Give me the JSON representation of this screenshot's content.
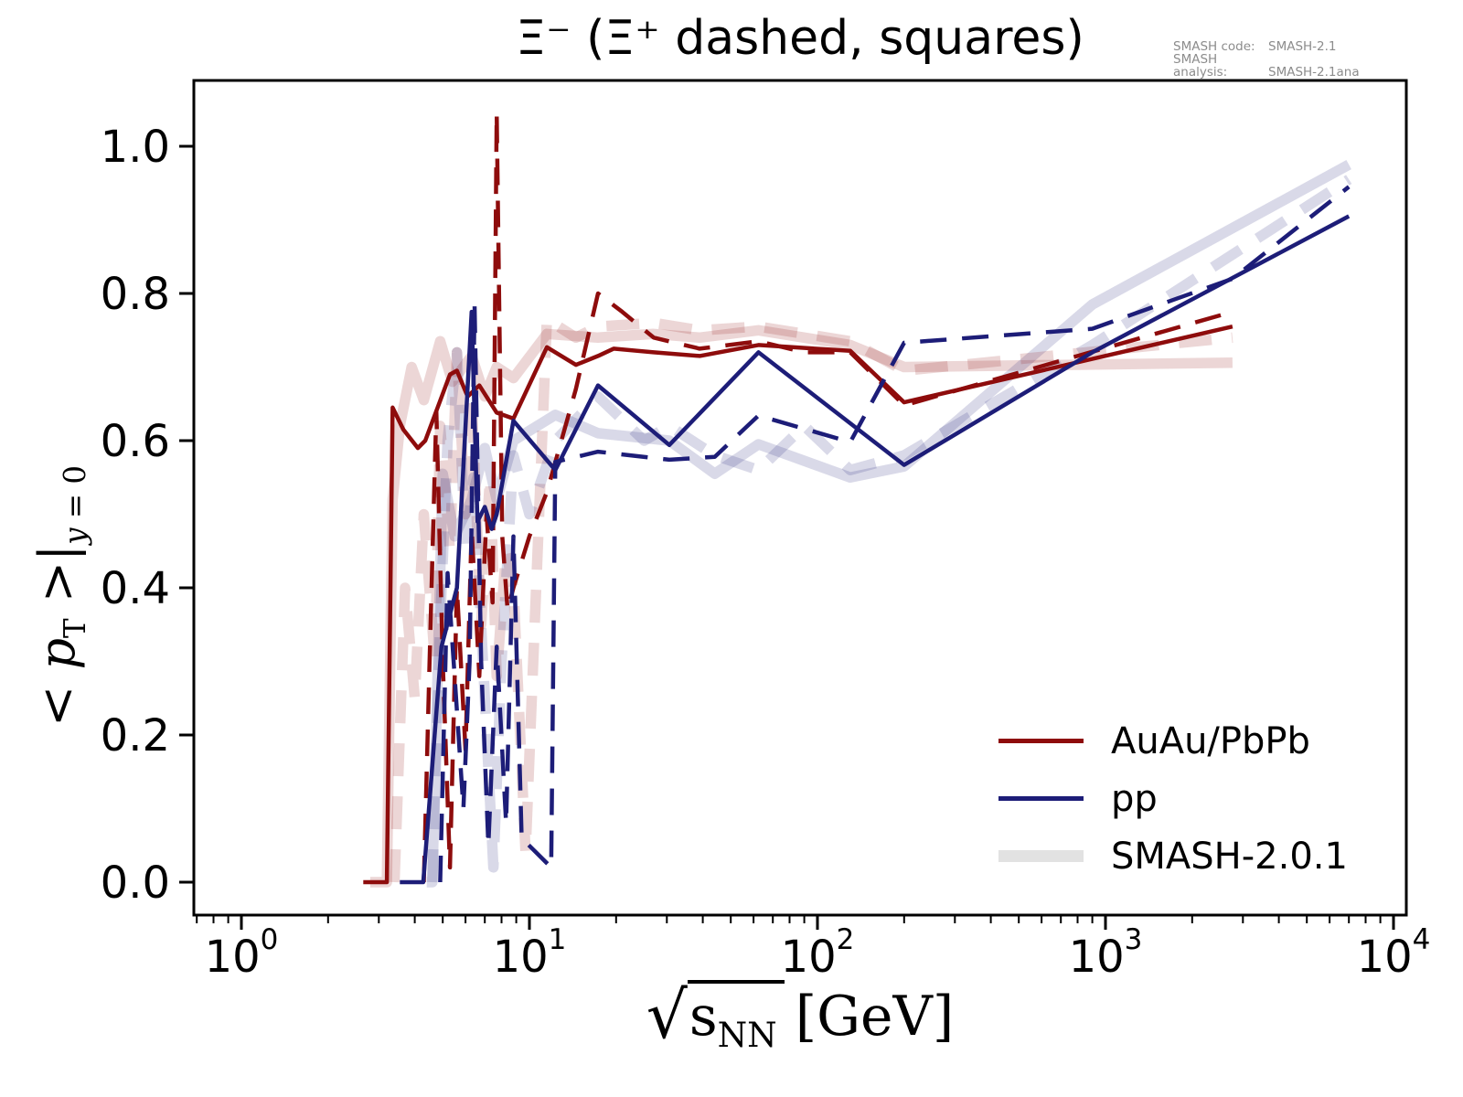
{
  "title": "Ξ⁻ (Ξ⁺ dashed, squares)",
  "watermark": {
    "line1_label": "SMASH code:",
    "line1_value": "SMASH-2.1",
    "line2_label": "SMASH analysis:",
    "line2_value": "SMASH-2.1ana"
  },
  "legend": {
    "items": [
      {
        "label": "AuAu/PbPb",
        "color": "#8e0c0c",
        "dash": "solid",
        "thickness": 5
      },
      {
        "label": "pp",
        "color": "#1d1d78",
        "dash": "solid",
        "thickness": 5
      },
      {
        "label": "SMASH-2.0.1",
        "color": "#e2e2e2",
        "dash": "solid",
        "thickness": 13
      }
    ]
  },
  "axes": {
    "xscale": "log",
    "xlabel": {
      "sqrt": "√",
      "radicand": "s",
      "radicand_sub": "NN",
      "unit": "[GeV]"
    },
    "ylabel": {
      "pre": "< ",
      "p": "p",
      "sub1": "T",
      "mid": " >|",
      "sub2_var": "y",
      "sub2_rest": " = 0"
    },
    "xticks": [
      {
        "base": "10",
        "exp": "0",
        "value": 1
      },
      {
        "base": "10",
        "exp": "1",
        "value": 10
      },
      {
        "base": "10",
        "exp": "2",
        "value": 100
      },
      {
        "base": "10",
        "exp": "3",
        "value": 1000
      },
      {
        "base": "10",
        "exp": "4",
        "value": 10000
      }
    ],
    "yticks": [
      {
        "label": "0.0",
        "value": 0.0
      },
      {
        "label": "0.2",
        "value": 0.2
      },
      {
        "label": "0.4",
        "value": 0.4
      },
      {
        "label": "0.6",
        "value": 0.6
      },
      {
        "label": "0.8",
        "value": 0.8
      },
      {
        "label": "1.0",
        "value": 1.0
      }
    ]
  },
  "chart_data": {
    "type": "line",
    "title": "Xi- (Xi+ dashed, squares)",
    "xlabel": "sqrt(s_NN) [GeV]",
    "ylabel": "<pT>|_{y=0}",
    "xscale": "log",
    "xlim": [
      0.68,
      11000
    ],
    "ylim": [
      -0.045,
      1.09
    ],
    "grid": false,
    "legend_position": "lower right",
    "series": [
      {
        "id": "auau-pbpb-smash201-solid",
        "name": "AuAu/PbPb SMASH-2.0.1 (Xi-)",
        "color": "#8e0c0c",
        "opacity": 0.17,
        "width": 11.5,
        "dash": null,
        "x": [
          2.8,
          3.2,
          3.35,
          3.55,
          3.9,
          4.3,
          4.9,
          5.4,
          6.3,
          7.0,
          7.7,
          8.8,
          11.5,
          17.3,
          27,
          39,
          62.4,
          130,
          200,
          2760
        ],
        "y": [
          0.0,
          0.0,
          0.52,
          0.62,
          0.7,
          0.655,
          0.735,
          0.68,
          0.715,
          0.66,
          0.7,
          0.685,
          0.745,
          0.74,
          0.745,
          0.74,
          0.75,
          0.73,
          0.7,
          0.706
        ]
      },
      {
        "id": "pp-smash201-solid",
        "name": "pp SMASH-2.0.1 (Xi-)",
        "color": "#1d1d78",
        "opacity": 0.17,
        "width": 11.5,
        "dash": null,
        "x": [
          4.4,
          4.6,
          5.0,
          5.5,
          6.3,
          7.0,
          7.7,
          8.8,
          12.3,
          17.3,
          30.6,
          44,
          62.4,
          130,
          200,
          900,
          7000
        ],
        "y": [
          0.0,
          0.0,
          0.555,
          0.47,
          0.52,
          0.59,
          0.52,
          0.6,
          0.635,
          0.61,
          0.6,
          0.555,
          0.595,
          0.55,
          0.565,
          0.785,
          0.975
        ]
      },
      {
        "id": "auau-pbpb-smash201-dashed-xibar",
        "name": "AuAu/PbPb SMASH-2.0.1 (Xi+ dashed)",
        "color": "#8e0c0c",
        "opacity": 0.17,
        "width": 11.5,
        "dash": "36 22",
        "x": [
          3.4,
          3.7,
          4.0,
          4.3,
          4.7,
          4.9,
          5.3,
          5.6,
          6.0,
          6.3,
          6.8,
          7.3,
          7.7,
          8.3,
          8.8,
          9.7,
          11.5,
          14.5,
          17.3,
          27,
          39,
          62.4,
          130,
          200,
          2760
        ],
        "y": [
          0.0,
          0.4,
          0.25,
          0.5,
          0.3,
          0.62,
          0.45,
          0.72,
          0.5,
          0.66,
          0.35,
          0.55,
          0.28,
          0.45,
          0.4,
          0.04,
          0.765,
          0.74,
          0.755,
          0.76,
          0.75,
          0.755,
          0.735,
          0.695,
          0.74
        ]
      },
      {
        "id": "pp-smash201-dashed-xibar",
        "name": "pp SMASH-2.0.1 (Xi+ dashed)",
        "color": "#1d1d78",
        "opacity": 0.17,
        "width": 11.5,
        "dash": "36 22",
        "x": [
          4.6,
          4.9,
          5.2,
          5.6,
          6.0,
          6.4,
          6.9,
          7.5,
          8.0,
          8.8,
          10.0,
          12.3,
          17.3,
          25,
          30.6,
          44,
          62.4,
          90,
          130,
          200,
          900,
          7000
        ],
        "y": [
          0.0,
          0.35,
          0.6,
          0.72,
          0.45,
          0.55,
          0.3,
          0.02,
          0.3,
          0.58,
          0.5,
          0.6,
          0.66,
          0.6,
          0.62,
          0.58,
          0.56,
          0.62,
          0.56,
          0.58,
          0.73,
          0.955
        ]
      },
      {
        "id": "auau-pbpb-smash21-solid",
        "name": "AuAu/PbPb SMASH-2.1 (Xi-)",
        "color": "#8e0c0c",
        "opacity": 1,
        "width": 4.5,
        "dash": null,
        "x": [
          2.65,
          3.2,
          3.35,
          3.65,
          4.1,
          4.35,
          5.3,
          5.6,
          6.1,
          6.7,
          7.7,
          8.8,
          11.5,
          14.5,
          17.3,
          19.6,
          27,
          39,
          62.4,
          130,
          200,
          2760
        ],
        "y": [
          0.0,
          0.0,
          0.645,
          0.615,
          0.59,
          0.6,
          0.69,
          0.695,
          0.66,
          0.675,
          0.638,
          0.63,
          0.727,
          0.703,
          0.715,
          0.725,
          0.72,
          0.715,
          0.73,
          0.722,
          0.652,
          0.755
        ]
      },
      {
        "id": "auau-pbpb-smash21-dashed-xibar",
        "name": "AuAu/PbPb SMASH-2.1 (Xi+ dashed)",
        "color": "#8e0c0c",
        "opacity": 1,
        "width": 4.5,
        "dash": "29 17",
        "x": [
          4.3,
          4.5,
          4.75,
          5.0,
          5.3,
          5.6,
          6.0,
          6.3,
          6.7,
          7.1,
          7.45,
          7.7,
          8.05,
          8.4,
          8.8,
          10.0,
          11.5,
          14.5,
          17.3,
          21,
          27,
          39,
          62.4,
          90,
          130,
          200,
          2760
        ],
        "y": [
          0.0,
          0.3,
          0.64,
          0.3,
          0.02,
          0.4,
          0.18,
          0.48,
          0.28,
          0.5,
          0.38,
          1.045,
          0.47,
          0.37,
          0.4,
          0.47,
          0.53,
          0.67,
          0.8,
          0.775,
          0.74,
          0.725,
          0.735,
          0.72,
          0.72,
          0.648,
          0.775
        ]
      },
      {
        "id": "pp-smash21-solid",
        "name": "pp SMASH-2.1 (Xi-)",
        "color": "#1d1d78",
        "opacity": 1,
        "width": 4.5,
        "dash": null,
        "x": [
          3.55,
          4.28,
          4.95,
          5.6,
          6.3,
          6.6,
          7.0,
          7.4,
          7.7,
          8.8,
          12.3,
          17.3,
          30.6,
          62.4,
          200,
          900,
          7000
        ],
        "y": [
          0.0,
          0.0,
          0.32,
          0.4,
          0.775,
          0.49,
          0.51,
          0.48,
          0.5,
          0.627,
          0.56,
          0.675,
          0.594,
          0.72,
          0.567,
          0.72,
          0.905
        ]
      },
      {
        "id": "pp-smash21-dashed-xibar",
        "name": "pp SMASH-2.1 (Xi+ dashed)",
        "color": "#1d1d78",
        "opacity": 1,
        "width": 4.5,
        "dash": "29 17",
        "x": [
          4.9,
          5.2,
          5.5,
          5.9,
          6.2,
          6.45,
          6.8,
          7.2,
          7.7,
          8.3,
          8.8,
          9.4,
          11.9,
          12.3,
          17.3,
          30.6,
          44,
          62.4,
          130,
          200,
          900,
          2760,
          7000
        ],
        "y": [
          0.0,
          0.42,
          0.28,
          0.1,
          0.3,
          0.785,
          0.3,
          0.05,
          0.32,
          0.08,
          0.47,
          0.06,
          0.02,
          0.571,
          0.585,
          0.574,
          0.578,
          0.634,
          0.598,
          0.733,
          0.752,
          0.82,
          0.945
        ]
      }
    ]
  }
}
